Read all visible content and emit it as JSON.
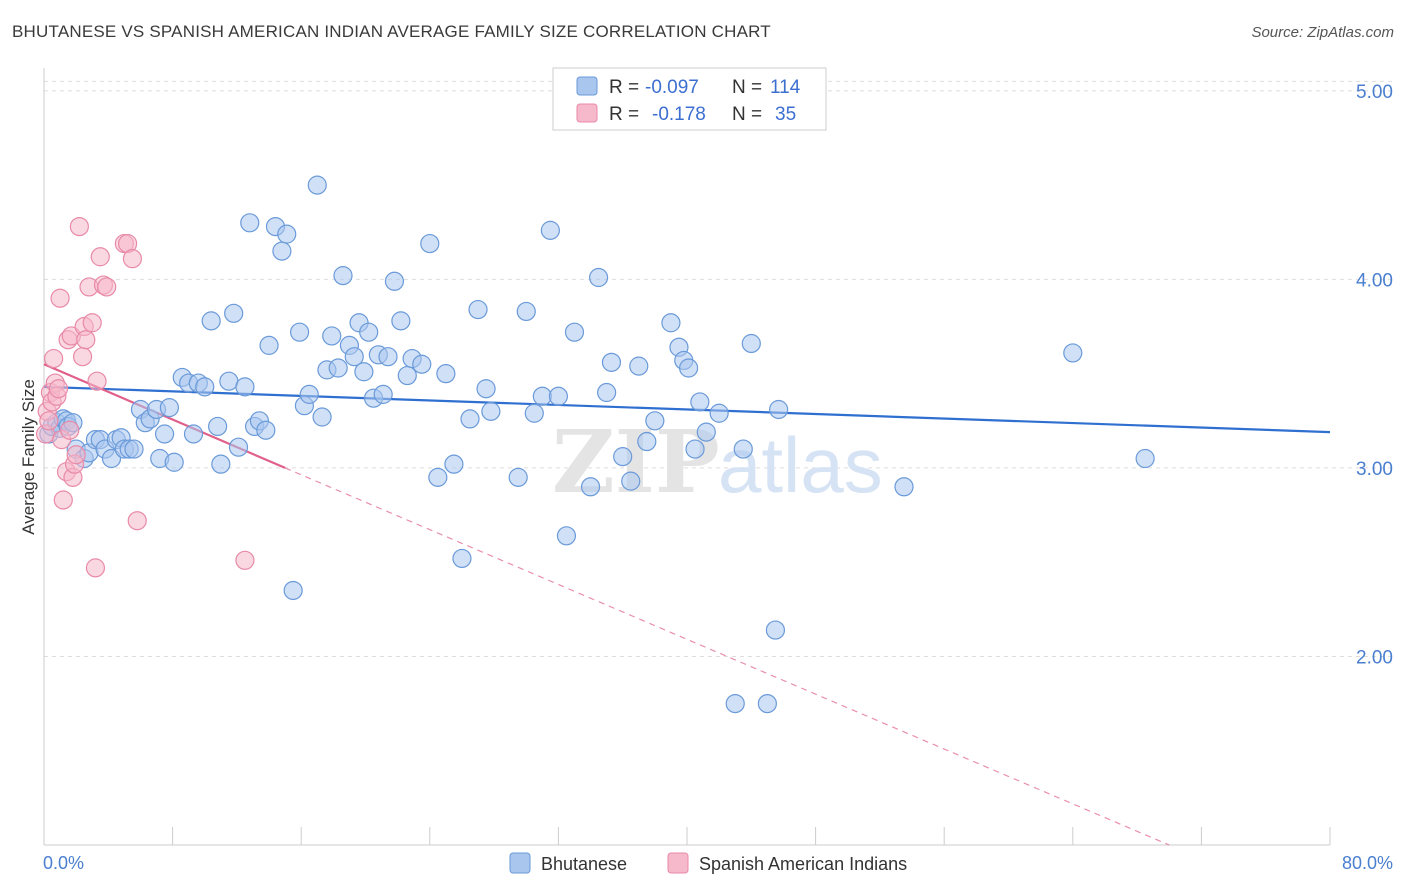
{
  "title": "BHUTANESE VS SPANISH AMERICAN INDIAN AVERAGE FAMILY SIZE CORRELATION CHART",
  "source": "Source: ZipAtlas.com",
  "watermark": {
    "zip": "ZIP",
    "atlas": "atlas"
  },
  "colors": {
    "blue_fill": "#a9c6ee",
    "blue_stroke": "#6a9ad9",
    "blue_line": "#2f6fd0",
    "pink_fill": "#f6b8cb",
    "pink_stroke": "#e88aa8",
    "pink_line": "#e0608a",
    "grid": "#dddddd",
    "tick_text": "#4a7fd0"
  },
  "legend_box": {
    "rows": [
      {
        "r_label": "R =",
        "r_value": "-0.097",
        "n_label": "N =",
        "n_value": "114"
      },
      {
        "r_label": "R =",
        "r_value": "-0.178",
        "n_label": "N =",
        "n_value": "35"
      }
    ]
  },
  "bottom_legend": [
    "Bhutanese",
    "Spanish American Indians"
  ],
  "chart_data": {
    "type": "scatter",
    "title": "BHUTANESE VS SPANISH AMERICAN INDIAN AVERAGE FAMILY SIZE CORRELATION CHART",
    "xlabel": "",
    "ylabel": "Average Family Size",
    "xlim": [
      0,
      80
    ],
    "ylim": [
      1.0,
      5.1
    ],
    "x_tick_labels": [
      "0.0%",
      "80.0%"
    ],
    "y_ticks": [
      2.0,
      3.0,
      4.0,
      5.0
    ],
    "y_tick_labels": [
      "2.00",
      "3.00",
      "4.00",
      "5.00"
    ],
    "grid": true,
    "legend_position": "top-center",
    "series": [
      {
        "name": "Bhutanese",
        "r": -0.097,
        "n": 114,
        "trend": {
          "x0": 0,
          "y0": 3.43,
          "x1": 80,
          "y1": 3.19
        },
        "points": [
          [
            0.3,
            3.18
          ],
          [
            0.5,
            3.22
          ],
          [
            0.8,
            3.24
          ],
          [
            1.0,
            3.21
          ],
          [
            1.2,
            3.26
          ],
          [
            1.4,
            3.25
          ],
          [
            1.5,
            3.22
          ],
          [
            1.8,
            3.24
          ],
          [
            2.0,
            3.1
          ],
          [
            2.5,
            3.05
          ],
          [
            2.8,
            3.08
          ],
          [
            3.2,
            3.15
          ],
          [
            3.5,
            3.15
          ],
          [
            3.8,
            3.1
          ],
          [
            4.2,
            3.05
          ],
          [
            4.5,
            3.15
          ],
          [
            4.8,
            3.16
          ],
          [
            5.0,
            3.1
          ],
          [
            5.3,
            3.1
          ],
          [
            5.6,
            3.1
          ],
          [
            6.0,
            3.31
          ],
          [
            6.3,
            3.24
          ],
          [
            6.6,
            3.26
          ],
          [
            7.0,
            3.31
          ],
          [
            7.2,
            3.05
          ],
          [
            7.5,
            3.18
          ],
          [
            7.8,
            3.32
          ],
          [
            8.1,
            3.03
          ],
          [
            8.6,
            3.48
          ],
          [
            9.0,
            3.45
          ],
          [
            9.3,
            3.18
          ],
          [
            9.6,
            3.45
          ],
          [
            10.0,
            3.43
          ],
          [
            10.4,
            3.78
          ],
          [
            10.8,
            3.22
          ],
          [
            11.0,
            3.02
          ],
          [
            11.5,
            3.46
          ],
          [
            11.8,
            3.82
          ],
          [
            12.1,
            3.11
          ],
          [
            12.5,
            3.43
          ],
          [
            12.8,
            4.3
          ],
          [
            13.1,
            3.22
          ],
          [
            13.4,
            3.25
          ],
          [
            13.8,
            3.2
          ],
          [
            14.0,
            3.65
          ],
          [
            14.4,
            4.28
          ],
          [
            14.8,
            4.15
          ],
          [
            15.1,
            4.24
          ],
          [
            15.5,
            2.35
          ],
          [
            15.9,
            3.72
          ],
          [
            16.2,
            3.33
          ],
          [
            16.5,
            3.39
          ],
          [
            17.0,
            4.5
          ],
          [
            17.3,
            3.27
          ],
          [
            17.6,
            3.52
          ],
          [
            17.9,
            3.7
          ],
          [
            18.3,
            3.53
          ],
          [
            18.6,
            4.02
          ],
          [
            19.0,
            3.65
          ],
          [
            19.3,
            3.59
          ],
          [
            19.6,
            3.77
          ],
          [
            19.9,
            3.51
          ],
          [
            20.2,
            3.72
          ],
          [
            20.5,
            3.37
          ],
          [
            20.8,
            3.6
          ],
          [
            21.1,
            3.39
          ],
          [
            21.4,
            3.59
          ],
          [
            21.8,
            3.99
          ],
          [
            22.2,
            3.78
          ],
          [
            22.6,
            3.49
          ],
          [
            22.9,
            3.58
          ],
          [
            23.5,
            3.55
          ],
          [
            24.0,
            4.19
          ],
          [
            24.5,
            2.95
          ],
          [
            25.0,
            3.5
          ],
          [
            25.5,
            3.02
          ],
          [
            26.0,
            2.52
          ],
          [
            26.5,
            3.26
          ],
          [
            27.0,
            3.84
          ],
          [
            27.5,
            3.42
          ],
          [
            27.8,
            3.3
          ],
          [
            29.5,
            2.95
          ],
          [
            30.0,
            3.83
          ],
          [
            30.5,
            3.29
          ],
          [
            31.0,
            3.38
          ],
          [
            31.5,
            4.26
          ],
          [
            32.0,
            3.38
          ],
          [
            32.5,
            2.64
          ],
          [
            33.0,
            3.72
          ],
          [
            34.0,
            2.9
          ],
          [
            34.5,
            4.01
          ],
          [
            35.0,
            3.4
          ],
          [
            35.3,
            3.56
          ],
          [
            36.0,
            3.06
          ],
          [
            36.5,
            2.93
          ],
          [
            37.0,
            3.54
          ],
          [
            37.5,
            3.14
          ],
          [
            38.0,
            3.25
          ],
          [
            39.0,
            3.77
          ],
          [
            39.5,
            3.64
          ],
          [
            39.8,
            3.57
          ],
          [
            40.1,
            3.53
          ],
          [
            40.5,
            3.1
          ],
          [
            40.8,
            3.35
          ],
          [
            41.2,
            3.19
          ],
          [
            42.0,
            3.29
          ],
          [
            43.0,
            1.75
          ],
          [
            43.5,
            3.1
          ],
          [
            44.0,
            3.66
          ],
          [
            45.0,
            1.75
          ],
          [
            45.5,
            2.14
          ],
          [
            45.7,
            3.31
          ],
          [
            53.5,
            2.9
          ],
          [
            64.0,
            3.61
          ],
          [
            68.5,
            3.05
          ]
        ]
      },
      {
        "name": "Spanish American Indians",
        "r": -0.178,
        "n": 35,
        "trend": {
          "x0": 0,
          "y0": 3.55,
          "x1": 15,
          "y1": 3.0,
          "dashed_to": {
            "x": 70,
            "y": 1.0
          }
        },
        "points": [
          [
            0.1,
            3.18
          ],
          [
            0.2,
            3.3
          ],
          [
            0.3,
            3.25
          ],
          [
            0.4,
            3.4
          ],
          [
            0.5,
            3.35
          ],
          [
            0.6,
            3.58
          ],
          [
            0.7,
            3.45
          ],
          [
            0.8,
            3.38
          ],
          [
            0.9,
            3.42
          ],
          [
            1.0,
            3.9
          ],
          [
            1.1,
            3.15
          ],
          [
            1.2,
            2.83
          ],
          [
            1.4,
            2.98
          ],
          [
            1.5,
            3.68
          ],
          [
            1.6,
            3.2
          ],
          [
            1.7,
            3.7
          ],
          [
            1.8,
            2.95
          ],
          [
            1.9,
            3.02
          ],
          [
            2.0,
            3.07
          ],
          [
            2.2,
            4.28
          ],
          [
            2.4,
            3.59
          ],
          [
            2.5,
            3.75
          ],
          [
            2.6,
            3.68
          ],
          [
            2.8,
            3.96
          ],
          [
            3.0,
            3.77
          ],
          [
            3.2,
            2.47
          ],
          [
            3.3,
            3.46
          ],
          [
            3.5,
            4.12
          ],
          [
            3.7,
            3.97
          ],
          [
            3.9,
            3.96
          ],
          [
            5.0,
            4.19
          ],
          [
            5.2,
            4.19
          ],
          [
            5.5,
            4.11
          ],
          [
            5.8,
            2.72
          ],
          [
            12.5,
            2.51
          ]
        ]
      }
    ]
  }
}
